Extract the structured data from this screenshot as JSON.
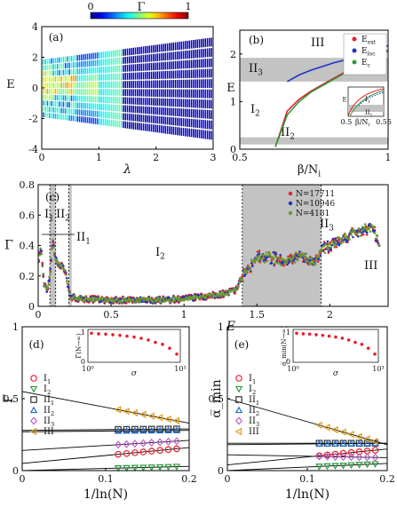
{
  "figure": {
    "panels": [
      "(a)",
      "(b)",
      "(c)",
      "(d)",
      "(e)"
    ]
  },
  "colors": {
    "red": "#e8202a",
    "blue": "#1f33c4",
    "green": "#6c9a2c",
    "gray_region": "#c3c3c3",
    "orange": "#e09d1a",
    "purple": "#c060d0",
    "dark": "#333333"
  },
  "chart_data": [
    {
      "id": "a",
      "type": "heatmap",
      "label": "(a)",
      "xlabel": "λ",
      "ylabel": "E",
      "xlim": [
        0,
        3
      ],
      "ylim": [
        -4,
        4
      ],
      "xticks": [
        "0",
        "1",
        "2",
        "3"
      ],
      "yticks": [
        "4",
        "2",
        "0",
        "-2",
        "-4"
      ],
      "colorbar": {
        "label": "Γ",
        "min_label": "0",
        "max_label": "1",
        "min": 0,
        "max": 1
      },
      "band_edge_at_lambda_3": 3.4
    },
    {
      "id": "b",
      "type": "line",
      "label": "(b)",
      "xlabel": "β/N_i",
      "ylabel": "E",
      "xlim": [
        0.5,
        1
      ],
      "ylim": [
        0,
        2.5
      ],
      "xticks": [
        "0.5",
        "1"
      ],
      "yticks": [
        "2",
        "1",
        "0"
      ],
      "regions": [
        {
          "name": "III",
          "sub": "",
          "from": 1.92,
          "to": 2.5,
          "shaded": false
        },
        {
          "name": "II",
          "sub": "3",
          "from": 1.42,
          "to": 1.92,
          "shaded": true
        },
        {
          "name": "I",
          "sub": "2",
          "from": 0.25,
          "to": 1.42,
          "shaded": false
        },
        {
          "name": "II",
          "sub": "2",
          "from": 0.1,
          "to": 0.25,
          "shaded": true
        }
      ],
      "legend": [
        {
          "name": "E",
          "sub": "ext",
          "color": "#e8202a"
        },
        {
          "name": "E",
          "sub": "loc",
          "color": "#1f33c4"
        },
        {
          "name": "E",
          "sub": "c",
          "color": "#2a9a3c"
        }
      ],
      "series": [
        {
          "name": "E_ext",
          "color": "#e8202a",
          "x": [
            0.62,
            0.66,
            0.7,
            0.74,
            0.78,
            0.82,
            0.86,
            0.9,
            0.94,
            0.98,
            1.0
          ],
          "y": [
            0.05,
            0.8,
            1.05,
            1.22,
            1.36,
            1.5,
            1.64,
            1.78,
            1.9,
            2.02,
            2.08
          ]
        },
        {
          "name": "E_loc",
          "color": "#1f33c4",
          "x": [
            0.66,
            0.7,
            0.74,
            0.78,
            0.82,
            0.86,
            0.9,
            0.94,
            0.98,
            1.0
          ],
          "y": [
            1.42,
            1.56,
            1.66,
            1.74,
            1.82,
            1.88,
            1.95,
            2.03,
            2.12,
            2.18
          ]
        },
        {
          "name": "E_c",
          "color": "#2a9a3c",
          "x": [
            0.62,
            0.66,
            0.7,
            0.74,
            0.78,
            0.82,
            0.86,
            0.9,
            0.94,
            0.98,
            1.0
          ],
          "y": [
            0.05,
            0.72,
            1.0,
            1.2,
            1.34,
            1.48,
            1.62,
            1.76,
            1.88,
            2.0,
            2.06
          ]
        }
      ],
      "inset": {
        "xlabel": "β/N_i",
        "ylabel": "E",
        "xticks": [
          "0.5",
          "0.55"
        ],
        "xlim": [
          0.5,
          0.55
        ],
        "labels": [
          {
            "name": "I",
            "sub": "1"
          },
          {
            "name": "II",
            "sub": "1"
          }
        ]
      }
    },
    {
      "id": "c",
      "type": "scatter",
      "label": "(c)",
      "xlabel": "E",
      "ylabel": "Γ",
      "xlim": [
        0,
        2.4
      ],
      "ylim": [
        0,
        0.8
      ],
      "xticks": [
        "0",
        "0.5",
        "1",
        "1.5",
        "2"
      ],
      "yticks": [
        "0.8",
        "0.6",
        "0.4",
        "0.2",
        "0"
      ],
      "legend": [
        {
          "name": "N=17711",
          "color": "#e8202a"
        },
        {
          "name": "N=10946",
          "color": "#1f33c4"
        },
        {
          "name": "N=4181",
          "color": "#6c9a2c"
        }
      ],
      "regions": [
        {
          "from": 0.08,
          "to": 0.12,
          "shaded": true
        },
        {
          "from": 0.21,
          "to": 0.23,
          "shaded": true
        },
        {
          "from": 1.4,
          "to": 1.94,
          "shaded": true
        }
      ],
      "region_labels": [
        {
          "name": "I",
          "sub": "1"
        },
        {
          "name": "II",
          "sub": "2"
        },
        {
          "name": "II",
          "sub": "1"
        },
        {
          "name": "I",
          "sub": "2"
        },
        {
          "name": "II",
          "sub": "3"
        },
        {
          "name": "III",
          "sub": ""
        }
      ],
      "profile": {
        "x": [
          0.0,
          0.02,
          0.04,
          0.06,
          0.08,
          0.1,
          0.12,
          0.14,
          0.18,
          0.22,
          0.3,
          0.5,
          0.8,
          1.0,
          1.2,
          1.35,
          1.42,
          1.5,
          1.6,
          1.7,
          1.8,
          1.9,
          1.94,
          2.0,
          2.1,
          2.2,
          2.3,
          2.34
        ],
        "y": [
          0.3,
          0.38,
          0.15,
          0.1,
          0.2,
          0.45,
          0.3,
          0.28,
          0.25,
          0.06,
          0.05,
          0.04,
          0.04,
          0.05,
          0.07,
          0.1,
          0.22,
          0.33,
          0.32,
          0.3,
          0.33,
          0.28,
          0.38,
          0.4,
          0.45,
          0.5,
          0.52,
          0.4
        ]
      }
    },
    {
      "id": "d",
      "type": "scatter",
      "label": "(d)",
      "xlabel": "1/ln(N)",
      "ylabel": "Γ̅",
      "xlim": [
        0,
        0.2
      ],
      "ylim": [
        0,
        1
      ],
      "xticks": [
        "0",
        "0.1",
        "0.2"
      ],
      "yticks": [
        "1",
        "0.5",
        "0"
      ],
      "legend": [
        {
          "name": "I",
          "sub": "1",
          "color": "#e8202a",
          "marker": "circle"
        },
        {
          "name": "I",
          "sub": "2",
          "color": "#2a9a3c",
          "marker": "triangle-down"
        },
        {
          "name": "II",
          "sub": "1",
          "color": "#333333",
          "marker": "square"
        },
        {
          "name": "II",
          "sub": "2",
          "color": "#1f6fd0",
          "marker": "triangle-up"
        },
        {
          "name": "II",
          "sub": "3",
          "color": "#c060d0",
          "marker": "diamond"
        },
        {
          "name": "III",
          "sub": "",
          "color": "#e09d1a",
          "marker": "triangle-left"
        }
      ],
      "series": [
        {
          "name": "I1",
          "color": "#e8202a",
          "marker": "circle",
          "y0": 0.05,
          "slope": 0.55
        },
        {
          "name": "I2",
          "color": "#2a9a3c",
          "marker": "triangle-down",
          "y0": 0.0,
          "slope": 0.15
        },
        {
          "name": "II1",
          "color": "#333333",
          "marker": "square",
          "y0": 0.28,
          "slope": 0.05
        },
        {
          "name": "II2",
          "color": "#1f6fd0",
          "marker": "triangle-up",
          "y0": 0.27,
          "slope": 0.05
        },
        {
          "name": "II3",
          "color": "#c060d0",
          "marker": "diamond",
          "y0": 0.14,
          "slope": 0.35
        },
        {
          "name": "III",
          "color": "#e09d1a",
          "marker": "triangle-left",
          "y0": 0.55,
          "slope": -1.1
        }
      ],
      "x_points": [
        0.115,
        0.125,
        0.135,
        0.145,
        0.155,
        0.165,
        0.175,
        0.185
      ],
      "inset": {
        "xlabel": "σ",
        "ylabel": "Γ̅(N→∞)",
        "xticks": [
          "10⁰",
          "10³"
        ],
        "yticks": [
          "1",
          "0"
        ],
        "values": [
          0.93,
          0.91,
          0.9,
          0.88,
          0.86,
          0.83,
          0.8,
          0.76,
          0.7,
          0.62,
          0.55,
          0.42,
          0.22
        ]
      }
    },
    {
      "id": "e",
      "type": "scatter",
      "label": "(e)",
      "xlabel": "1/ln(N)",
      "ylabel": "α̅_min",
      "xlim": [
        0,
        0.2
      ],
      "ylim": [
        0,
        1
      ],
      "xticks": [
        "0",
        "0.1",
        "0.2"
      ],
      "yticks": [
        "1",
        "0.5",
        "0"
      ],
      "legend": [
        {
          "name": "I",
          "sub": "1",
          "color": "#e8202a",
          "marker": "circle"
        },
        {
          "name": "I",
          "sub": "2",
          "color": "#2a9a3c",
          "marker": "triangle-down"
        },
        {
          "name": "II",
          "sub": "1",
          "color": "#333333",
          "marker": "square"
        },
        {
          "name": "II",
          "sub": "2",
          "color": "#1f6fd0",
          "marker": "triangle-up"
        },
        {
          "name": "II",
          "sub": "3",
          "color": "#c060d0",
          "marker": "diamond"
        },
        {
          "name": "III",
          "sub": "",
          "color": "#e09d1a",
          "marker": "triangle-left"
        }
      ],
      "series": [
        {
          "name": "I1",
          "color": "#e8202a",
          "marker": "circle",
          "y0": 0.04,
          "slope": 0.55
        },
        {
          "name": "I2",
          "color": "#2a9a3c",
          "marker": "triangle-down",
          "y0": 0.0,
          "slope": 0.25
        },
        {
          "name": "II1",
          "color": "#333333",
          "marker": "square",
          "y0": 0.19,
          "slope": 0.0
        },
        {
          "name": "II2",
          "color": "#1f6fd0",
          "marker": "triangle-up",
          "y0": 0.18,
          "slope": 0.05
        },
        {
          "name": "II3",
          "color": "#c060d0",
          "marker": "diamond",
          "y0": 0.11,
          "slope": -0.1
        },
        {
          "name": "III",
          "color": "#e09d1a",
          "marker": "triangle-left",
          "y0": 0.5,
          "slope": -1.6
        }
      ],
      "x_points": [
        0.115,
        0.125,
        0.135,
        0.145,
        0.155,
        0.165,
        0.175,
        0.185
      ],
      "inset": {
        "xlabel": "σ",
        "ylabel": "α̅_min(N→∞)",
        "xticks": [
          "10⁰",
          "10³"
        ],
        "yticks": [
          "1",
          "0"
        ],
        "values": [
          0.93,
          0.91,
          0.9,
          0.88,
          0.86,
          0.83,
          0.8,
          0.76,
          0.7,
          0.62,
          0.55,
          0.42,
          0.22
        ]
      }
    }
  ]
}
